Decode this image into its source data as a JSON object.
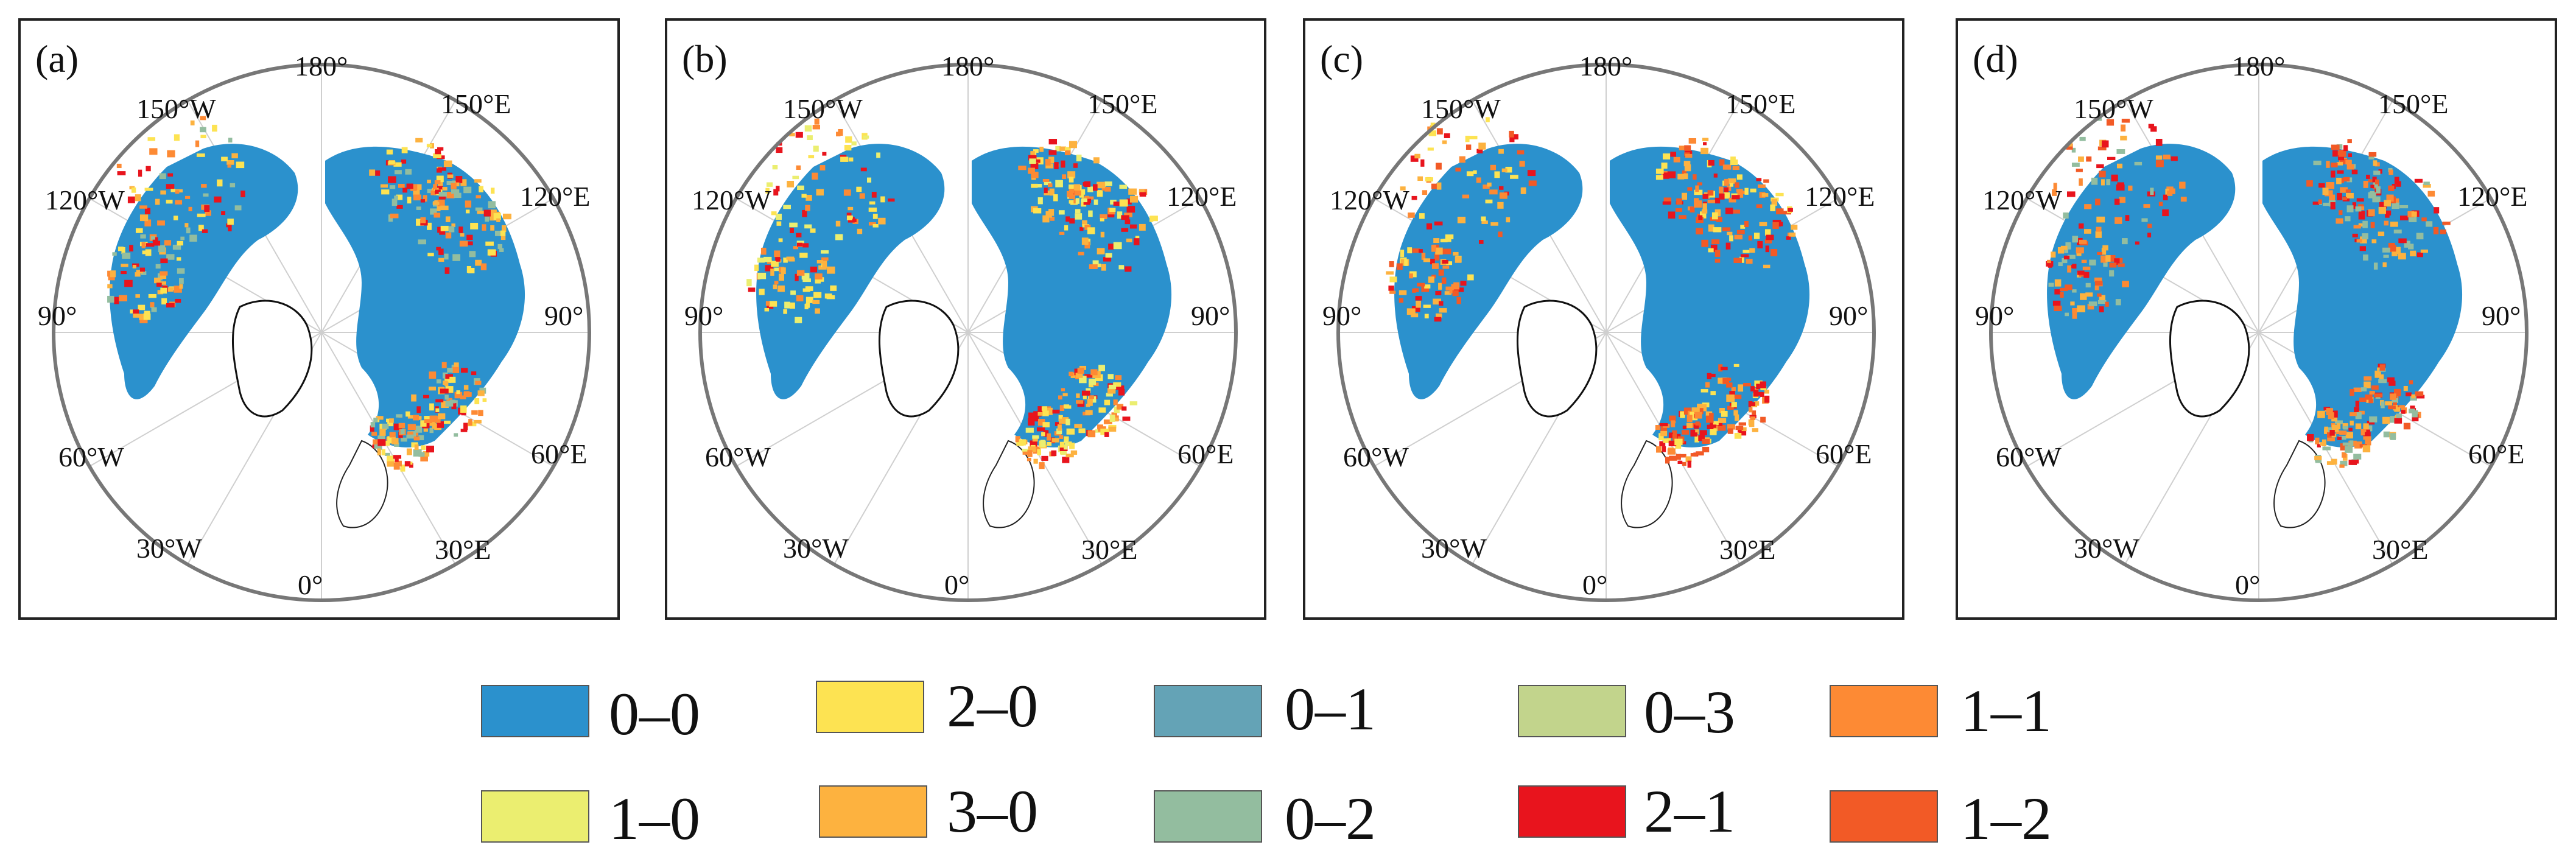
{
  "panels": [
    {
      "label": "(a)"
    },
    {
      "label": "(b)"
    },
    {
      "label": "(c)"
    },
    {
      "label": "(d)"
    }
  ],
  "coords": {
    "top": "180°",
    "top_left": "150°W",
    "top_right": "150°E",
    "upper_left": "120°W",
    "upper_right": "120°E",
    "left": "90°",
    "right": "90°",
    "lower_left": "60°W",
    "lower_right": "60°E",
    "bottom_left": "30°W",
    "bottom_right": "30°E",
    "bottom": "0°"
  },
  "legend": [
    {
      "label": "0–0",
      "color": "#2b91cd"
    },
    {
      "label": "2–0",
      "color": "#fde352"
    },
    {
      "label": "0–1",
      "color": "#64a3b6"
    },
    {
      "label": "0–3",
      "color": "#c2d48c"
    },
    {
      "label": "1–1",
      "color": "#fd8a34"
    },
    {
      "label": "1–0",
      "color": "#ebee70"
    },
    {
      "label": "3–0",
      "color": "#fdb23f"
    },
    {
      "label": "0–2",
      "color": "#93bd9f"
    },
    {
      "label": "2–1",
      "color": "#e8141d"
    },
    {
      "label": "1–2",
      "color": "#f25a26"
    }
  ]
}
